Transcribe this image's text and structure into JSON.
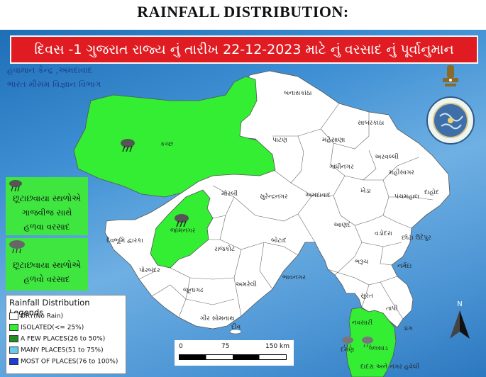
{
  "title": "RAINFALL DISTRIBUTION:",
  "banner": "દિવસ -1 ગુજરાત રાજ્ય નું  તારીખ 22-12-2023 માટે નું વરસાદ નું પૂર્વાનુમાન",
  "org": {
    "line1": "હવામાન કેન્દ્ર ,અમદાવાદ",
    "line2": "ભારત મૌસમ વિજ્ઞાન વિભાગ"
  },
  "notes": [
    {
      "text": "છૂટાછવાયા સ્થળોએ ગાજવીજ સાથે હળવા વરસાદ",
      "lines": [
        "છૂટાછવાયા સ્થળોએ",
        "ગાજવીજ સાથે",
        "હળવા વરસાદ"
      ],
      "icon": "thunder-cloud-icon"
    },
    {
      "text": "છૂટાછવાયા સ્થળોએ હળવો વરસાદ",
      "lines": [
        "છૂટાછવાયા સ્થળોએ",
        "હળવો વરસાદ"
      ],
      "icon": "rain-cloud-icon"
    }
  ],
  "legend": {
    "title": "Rainfall Distribution Legends",
    "items": [
      {
        "label": "DRY(No Rain)",
        "color": "#ffffff"
      },
      {
        "label": "ISOLATED(<= 25%)",
        "color": "#33ee33"
      },
      {
        "label": "A FEW PLACES(26 to 50%)",
        "color": "#228b22"
      },
      {
        "label": "MANY PLACES(51 to 75%)",
        "color": "#66cce8"
      },
      {
        "label": "MOST OF PLACES(76 to 100%)",
        "color": "#1a3fd6"
      }
    ]
  },
  "scale": {
    "ticks": [
      "0",
      "75",
      "150 km"
    ]
  },
  "north": "N",
  "districts": [
    {
      "name": "બનાસકાંઠા",
      "forecast": "DRY(No Rain)"
    },
    {
      "name": "કચ્છ",
      "forecast": "ISOLATED(<= 25%)"
    },
    {
      "name": "પાટણ",
      "forecast": "DRY(No Rain)"
    },
    {
      "name": "મહેસાણા",
      "forecast": "DRY(No Rain)"
    },
    {
      "name": "સાબરકાંઠા",
      "forecast": "DRY(No Rain)"
    },
    {
      "name": "અરવલ્લી",
      "forecast": "DRY(No Rain)"
    },
    {
      "name": "ગાંધીનગર",
      "forecast": "DRY(No Rain)"
    },
    {
      "name": "મહીસાગર",
      "forecast": "DRY(No Rain)"
    },
    {
      "name": "મોરબી",
      "forecast": "DRY(No Rain)"
    },
    {
      "name": "સુરેન્દ્રનગર",
      "forecast": "DRY(No Rain)"
    },
    {
      "name": "અમદાવાદ",
      "forecast": "DRY(No Rain)"
    },
    {
      "name": "ખેડા",
      "forecast": "DRY(No Rain)"
    },
    {
      "name": "પંચમહાલ",
      "forecast": "DRY(No Rain)"
    },
    {
      "name": "દાહોદ",
      "forecast": "DRY(No Rain)"
    },
    {
      "name": "જામનગર",
      "forecast": "ISOLATED(<= 25%)"
    },
    {
      "name": "દેવભૂમિ દ્વારકા",
      "forecast": "DRY(No Rain)"
    },
    {
      "name": "રાજકોટ",
      "forecast": "DRY(No Rain)"
    },
    {
      "name": "બોટાદ",
      "forecast": "DRY(No Rain)"
    },
    {
      "name": "આણંદ",
      "forecast": "DRY(No Rain)"
    },
    {
      "name": "વડોદરા",
      "forecast": "DRY(No Rain)"
    },
    {
      "name": "છોટા ઉદેપુર",
      "forecast": "DRY(No Rain)"
    },
    {
      "name": "પોરબંદર",
      "forecast": "DRY(No Rain)"
    },
    {
      "name": "જૂનાગઢ",
      "forecast": "DRY(No Rain)"
    },
    {
      "name": "અમરેલી",
      "forecast": "DRY(No Rain)"
    },
    {
      "name": "ભાવનગર",
      "forecast": "DRY(No Rain)"
    },
    {
      "name": "ભરૂચ",
      "forecast": "DRY(No Rain)"
    },
    {
      "name": "નર્મદા",
      "forecast": "DRY(No Rain)"
    },
    {
      "name": "ગીર સોમનાથ",
      "forecast": "DRY(No Rain)"
    },
    {
      "name": "સુરત",
      "forecast": "DRY(No Rain)"
    },
    {
      "name": "તાપી",
      "forecast": "DRY(No Rain)"
    },
    {
      "name": "નવસારી",
      "forecast": "ISOLATED(<= 25%)"
    },
    {
      "name": "ડાંગ",
      "forecast": "DRY(No Rain)"
    },
    {
      "name": "દીવ",
      "forecast": "DRY(No Rain)"
    },
    {
      "name": "દમણ",
      "forecast": "ISOLATED(<= 25%)"
    },
    {
      "name": "વલસાડ",
      "forecast": "ISOLATED(<= 25%)"
    },
    {
      "name": "દાદરા અને નગર હવેલી",
      "forecast": "ISOLATED(<= 25%)"
    }
  ],
  "colors": {
    "dry": "#ffffff",
    "isolated": "#33ee33",
    "banner": "#e11b22",
    "sea": "#3e8fd3"
  }
}
